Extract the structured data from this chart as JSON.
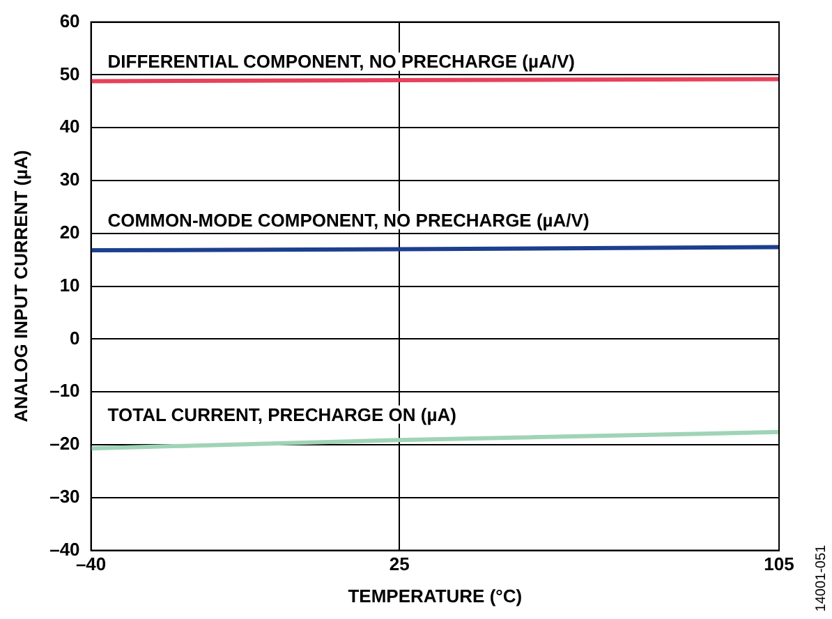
{
  "chart_data": {
    "type": "line",
    "xlabel": "TEMPERATURE (°C)",
    "ylabel": "ANALOG INPUT CURRENT (µA)",
    "x": [
      -40,
      25,
      105
    ],
    "series": [
      {
        "name": "DIFFERENTIAL COMPONENT, NO PRECHARGE (µA/V)",
        "color": "#e8415a",
        "values": [
          48.8,
          49.0,
          49.2
        ]
      },
      {
        "name": "COMMON-MODE COMPONENT, NO PRECHARGE (µA/V)",
        "color": "#1c3f8f",
        "values": [
          16.8,
          17.0,
          17.4
        ]
      },
      {
        "name": "TOTAL CURRENT, PRECHARGE ON (µA)",
        "color": "#9fd4b6",
        "values": [
          -20.7,
          -19.1,
          -17.6
        ]
      }
    ],
    "xlim": [
      -40,
      105
    ],
    "xticks": [
      {
        "value": -40,
        "label": "–40"
      },
      25,
      105
    ],
    "ylim": [
      -40,
      60
    ],
    "yticks": [
      {
        "value": -40,
        "label": "–40"
      },
      {
        "value": -30,
        "label": "–30"
      },
      {
        "value": -20,
        "label": "–20"
      },
      {
        "value": -10,
        "label": "–10"
      },
      0,
      10,
      20,
      30,
      40,
      50,
      60
    ],
    "grid": true,
    "legend": false,
    "marker": "none",
    "line_style": "solid",
    "annotations": [
      "14001-051"
    ]
  }
}
